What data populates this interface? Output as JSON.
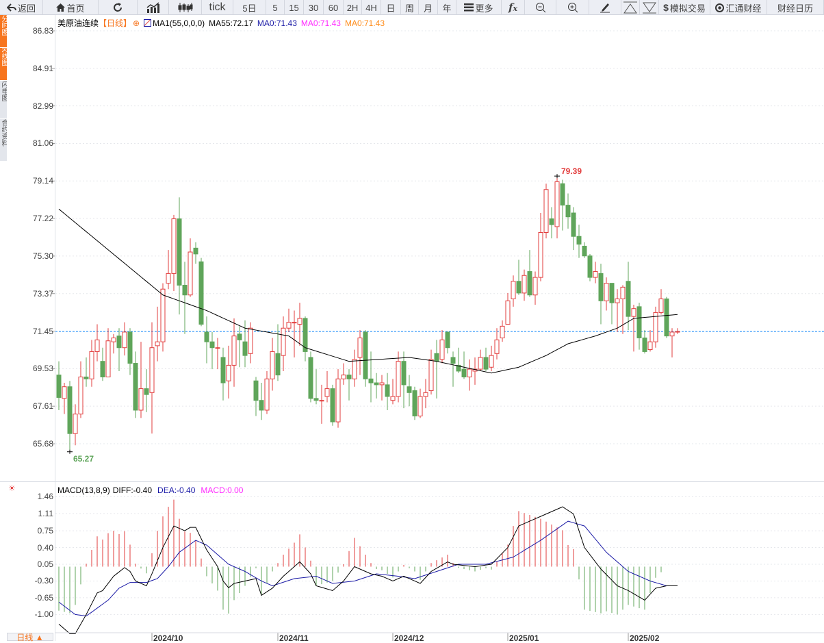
{
  "toolbar": [
    {
      "id": "back",
      "label": "返回",
      "icon": "back-arrow-icon",
      "w": 63
    },
    {
      "id": "home",
      "label": "首页",
      "icon": "home-icon",
      "w": 81
    },
    {
      "id": "refresh",
      "label": "",
      "icon": "refresh-icon",
      "w": 57
    },
    {
      "id": "indicator",
      "label": "",
      "icon": "bar-chart-icon",
      "w": 46
    },
    {
      "id": "candle",
      "label": "",
      "icon": "candlestick-icon",
      "w": 48
    },
    {
      "id": "tick",
      "label": "tick",
      "w": 46
    },
    {
      "id": "5d",
      "label": "5日",
      "w": 48
    },
    {
      "id": "m5",
      "label": "5",
      "w": 27
    },
    {
      "id": "m15",
      "label": "15",
      "w": 28
    },
    {
      "id": "m30",
      "label": "30",
      "w": 29
    },
    {
      "id": "m60",
      "label": "60",
      "w": 29
    },
    {
      "id": "h2",
      "label": "2H",
      "w": 27
    },
    {
      "id": "h4",
      "label": "4H",
      "w": 28
    },
    {
      "id": "day",
      "label": "日",
      "w": 29
    },
    {
      "id": "week",
      "label": "周",
      "w": 26
    },
    {
      "id": "month",
      "label": "月",
      "w": 28
    },
    {
      "id": "year",
      "label": "年",
      "w": 27
    },
    {
      "id": "more",
      "label": "更多",
      "icon": "menu-icon",
      "w": 66
    },
    {
      "id": "fx",
      "label": "",
      "icon": "formula-icon",
      "w": 34
    },
    {
      "id": "zoomout",
      "label": "",
      "icon": "zoom-out-icon",
      "w": 46
    },
    {
      "id": "zoomin",
      "label": "",
      "icon": "zoom-in-icon",
      "w": 48
    },
    {
      "id": "draw",
      "label": "",
      "icon": "pencil-icon",
      "w": 47
    },
    {
      "id": "up",
      "label": "",
      "icon": "triangle-up-icon",
      "w": 27
    },
    {
      "id": "down",
      "label": "",
      "icon": "triangle-down-icon",
      "w": 28
    },
    {
      "id": "sim",
      "label": "模拟交易",
      "icon": "dollar-icon",
      "w": 75
    },
    {
      "id": "fx678",
      "label": "汇通财经",
      "icon": "fx678-logo-icon",
      "w": 83
    },
    {
      "id": "cal",
      "label": "财经日历",
      "w": 83
    }
  ],
  "sidebar": [
    {
      "label": "分时图",
      "active": true
    },
    {
      "label": "K线图",
      "active": true
    },
    {
      "label": "闪电图",
      "active": false
    },
    {
      "label": "合约资料",
      "active": false
    }
  ],
  "legend": {
    "symbol": "美原油连续",
    "period": "【日线】",
    "ma_name": "MA1(55,0,0,0)",
    "ma55": "MA55:72.17",
    "ma0_a": "MA0:71.43",
    "ma0_b": "MA0:71.43",
    "ma0_c": "MA0:71.43"
  },
  "macd_legend": {
    "name": "MACD(13,8,9)",
    "diff": "DIFF:-0.40",
    "dea": "DEA:-0.40",
    "macd": "MACD:0.00"
  },
  "bottom_button": "日线 ▲",
  "colors": {
    "up": "#e23b3b",
    "down": "#5fa55a",
    "ma55": "#000000",
    "diff": "#000000",
    "dea": "#1a1aa6",
    "current_price": "#1e90ff",
    "ma0_a": "#1a1aa6",
    "ma0_b": "#ff2aff",
    "ma0_c": "#ff8c1a"
  },
  "chart_data": {
    "type": "candlestick",
    "price_axis": {
      "ticks": [
        "86.83",
        "84.91",
        "82.99",
        "81.06",
        "79.14",
        "77.22",
        "75.30",
        "73.37",
        "71.45",
        "69.53",
        "67.61",
        "65.68"
      ],
      "range": [
        65.68,
        86.83
      ]
    },
    "current_price": 71.43,
    "max_label": "79.39",
    "max_index": 91,
    "min_label": "65.27",
    "min_index": 2,
    "x_labels": [
      {
        "label": "2024/10",
        "index": 17
      },
      {
        "label": "2024/11",
        "index": 40
      },
      {
        "label": "2024/12",
        "index": 61
      },
      {
        "label": "2025/01",
        "index": 82
      },
      {
        "label": "2025/02",
        "index": 104
      }
    ],
    "ohlc": [
      [
        69.2,
        69.9,
        67.4,
        68.05
      ],
      [
        68.0,
        68.8,
        67.2,
        68.6
      ],
      [
        68.6,
        68.9,
        65.27,
        66.2
      ],
      [
        66.2,
        67.7,
        65.6,
        67.2
      ],
      [
        67.2,
        69.9,
        67.0,
        69.1
      ],
      [
        69.1,
        70.1,
        68.6,
        69.0
      ],
      [
        69.0,
        71.0,
        68.6,
        70.4
      ],
      [
        70.4,
        71.8,
        69.9,
        71.0
      ],
      [
        69.9,
        70.6,
        68.9,
        69.1
      ],
      [
        69.1,
        71.6,
        69.1,
        70.95
      ],
      [
        70.9,
        71.3,
        70.3,
        71.1
      ],
      [
        71.2,
        71.6,
        69.4,
        70.6
      ],
      [
        70.6,
        71.9,
        70.2,
        71.4
      ],
      [
        71.4,
        71.6,
        69.2,
        69.8
      ],
      [
        69.8,
        70.4,
        67.0,
        67.4
      ],
      [
        67.4,
        70.9,
        67.0,
        68.5
      ],
      [
        68.5,
        69.5,
        67.3,
        68.2
      ],
      [
        68.3,
        71.9,
        66.2,
        70.6
      ],
      [
        70.7,
        72.7,
        69.9,
        70.9
      ],
      [
        70.9,
        73.9,
        70.4,
        73.6
      ],
      [
        73.9,
        75.6,
        73.6,
        74.4
      ],
      [
        74.4,
        77.4,
        73.5,
        77.2
      ],
      [
        77.2,
        78.3,
        72.3,
        73.8
      ],
      [
        73.8,
        75.0,
        71.3,
        73.3
      ],
      [
        73.3,
        76.2,
        73.2,
        75.5
      ],
      [
        75.7,
        76.0,
        74.9,
        75.4
      ],
      [
        75.0,
        75.2,
        71.7,
        71.8
      ],
      [
        71.4,
        72.2,
        69.8,
        70.9
      ],
      [
        70.9,
        71.4,
        69.5,
        70.6
      ],
      [
        70.6,
        71.1,
        69.5,
        70.6
      ],
      [
        70.1,
        70.6,
        67.9,
        68.8
      ],
      [
        68.9,
        70.7,
        68.0,
        69.7
      ],
      [
        69.7,
        72.1,
        68.6,
        71.2
      ],
      [
        71.3,
        71.7,
        69.6,
        71.0
      ],
      [
        70.9,
        72.0,
        69.6,
        70.2
      ],
      [
        70.3,
        71.9,
        69.8,
        71.6
      ],
      [
        68.9,
        69.1,
        67.1,
        67.9
      ],
      [
        67.9,
        68.8,
        66.9,
        67.4
      ],
      [
        67.4,
        69.4,
        67.2,
        69.0
      ],
      [
        69.0,
        71.1,
        68.4,
        70.4
      ],
      [
        70.3,
        71.8,
        68.9,
        69.2
      ],
      [
        70.2,
        72.2,
        69.4,
        71.6
      ],
      [
        71.6,
        72.6,
        71.4,
        71.9
      ],
      [
        71.9,
        72.5,
        70.1,
        71.9
      ],
      [
        71.8,
        72.9,
        70.7,
        72.1
      ],
      [
        72.1,
        72.2,
        69.9,
        70.4
      ],
      [
        70.1,
        70.4,
        67.8,
        68.0
      ],
      [
        68.0,
        69.5,
        67.7,
        67.9
      ],
      [
        67.9,
        68.7,
        66.7,
        67.9
      ],
      [
        68.1,
        69.4,
        67.8,
        68.5
      ],
      [
        68.5,
        68.7,
        66.6,
        66.8
      ],
      [
        66.8,
        69.5,
        66.5,
        69.0
      ],
      [
        69.0,
        69.8,
        68.7,
        69.2
      ],
      [
        69.2,
        69.5,
        67.9,
        69.0
      ],
      [
        69.0,
        70.5,
        68.6,
        70.0
      ],
      [
        70.1,
        71.5,
        69.2,
        71.1
      ],
      [
        71.4,
        71.5,
        68.6,
        69.0
      ],
      [
        69.0,
        70.4,
        67.8,
        68.8
      ],
      [
        68.8,
        69.3,
        68.0,
        68.7
      ],
      [
        68.7,
        69.2,
        67.9,
        68.8
      ],
      [
        68.7,
        69.3,
        67.4,
        68.1
      ],
      [
        67.9,
        69.0,
        67.7,
        68.1
      ],
      [
        68.1,
        70.4,
        67.8,
        69.9
      ],
      [
        69.9,
        70.4,
        67.5,
        68.7
      ],
      [
        68.6,
        69.2,
        67.6,
        68.3
      ],
      [
        68.4,
        68.6,
        66.9,
        67.1
      ],
      [
        67.1,
        68.5,
        67.0,
        68.1
      ],
      [
        68.1,
        69.0,
        67.5,
        68.3
      ],
      [
        68.4,
        70.5,
        68.2,
        70.0
      ],
      [
        70.3,
        71.0,
        68.0,
        69.9
      ],
      [
        70.0,
        71.5,
        69.8,
        71.0
      ],
      [
        71.4,
        71.4,
        70.3,
        70.6
      ],
      [
        70.1,
        70.4,
        68.6,
        69.8
      ],
      [
        69.7,
        70.6,
        69.3,
        69.4
      ],
      [
        69.5,
        70.4,
        69.0,
        69.1
      ],
      [
        69.1,
        70.0,
        68.4,
        69.5
      ],
      [
        69.4,
        70.1,
        68.7,
        69.5
      ],
      [
        69.5,
        70.5,
        69.4,
        70.1
      ],
      [
        70.1,
        70.6,
        69.4,
        69.5
      ],
      [
        69.6,
        70.7,
        69.4,
        70.2
      ],
      [
        70.3,
        71.6,
        70.0,
        71.0
      ],
      [
        71.1,
        72.0,
        70.9,
        71.7
      ],
      [
        71.8,
        73.4,
        71.8,
        73.0
      ],
      [
        73.1,
        74.3,
        72.7,
        74.0
      ],
      [
        74.0,
        75.1,
        73.3,
        73.4
      ],
      [
        73.4,
        74.6,
        73.0,
        74.3
      ],
      [
        74.5,
        75.6,
        73.2,
        73.3
      ],
      [
        73.3,
        74.5,
        72.8,
        74.2
      ],
      [
        74.2,
        77.5,
        74.0,
        76.5
      ],
      [
        76.5,
        79.0,
        76.2,
        78.7
      ],
      [
        77.2,
        77.8,
        76.2,
        76.9
      ],
      [
        76.8,
        79.39,
        76.2,
        79.1
      ],
      [
        79.0,
        79.2,
        76.6,
        77.9
      ],
      [
        77.9,
        78.5,
        76.7,
        77.3
      ],
      [
        77.5,
        77.8,
        75.6,
        76.3
      ],
      [
        76.3,
        76.9,
        75.2,
        75.9
      ],
      [
        75.8,
        76.0,
        75.2,
        75.3
      ],
      [
        75.3,
        75.4,
        74.0,
        74.2
      ],
      [
        74.2,
        75.0,
        73.9,
        74.5
      ],
      [
        74.4,
        74.9,
        71.8,
        73.0
      ],
      [
        73.0,
        74.2,
        72.5,
        73.9
      ],
      [
        73.9,
        73.9,
        71.8,
        72.9
      ],
      [
        72.9,
        73.6,
        71.4,
        73.1
      ],
      [
        73.1,
        73.8,
        71.3,
        73.7
      ],
      [
        74.0,
        75.0,
        71.5,
        72.2
      ],
      [
        72.2,
        72.8,
        70.4,
        72.6
      ],
      [
        72.7,
        72.9,
        70.5,
        71.1
      ],
      [
        71.1,
        71.5,
        70.3,
        70.4
      ],
      [
        70.5,
        71.5,
        70.4,
        70.9
      ],
      [
        70.9,
        72.7,
        70.6,
        72.4
      ],
      [
        72.4,
        73.6,
        72.3,
        73.1
      ],
      [
        73.1,
        73.2,
        71.1,
        71.2
      ],
      [
        71.2,
        71.6,
        70.1,
        71.4
      ],
      [
        71.4,
        71.6,
        71.3,
        71.43
      ]
    ],
    "ma55_keypoints": [
      [
        0,
        77.7
      ],
      [
        19,
        73.3
      ],
      [
        27,
        72.5
      ],
      [
        34,
        71.6
      ],
      [
        42,
        71.2
      ],
      [
        45,
        70.6
      ],
      [
        53,
        69.9
      ],
      [
        64,
        70.1
      ],
      [
        69,
        69.9
      ],
      [
        79,
        69.3
      ],
      [
        84,
        69.6
      ],
      [
        89,
        70.2
      ],
      [
        93,
        70.8
      ],
      [
        98,
        71.2
      ],
      [
        102,
        71.6
      ],
      [
        105,
        72.1
      ],
      [
        113,
        72.3
      ]
    ],
    "macd": {
      "axis_ticks": [
        "1.46",
        "1.11",
        "0.75",
        "0.40",
        "0.05",
        "-0.30",
        "-0.65",
        "-1.00"
      ],
      "range": [
        -1.3,
        1.5
      ],
      "diff_keypoints": [
        [
          0,
          -1.2
        ],
        [
          2,
          -1.4
        ],
        [
          3,
          -1.4
        ],
        [
          5,
          -1.0
        ],
        [
          7,
          -0.55
        ],
        [
          8,
          -0.5
        ],
        [
          10,
          -0.2
        ],
        [
          12,
          -0.02
        ],
        [
          13,
          -0.1
        ],
        [
          14,
          -0.3
        ],
        [
          16,
          -0.4
        ],
        [
          17,
          -0.15
        ],
        [
          19,
          0.4
        ],
        [
          21,
          0.85
        ],
        [
          23,
          0.75
        ],
        [
          24,
          0.82
        ],
        [
          25,
          0.82
        ],
        [
          27,
          0.35
        ],
        [
          29,
          0.0
        ],
        [
          30,
          -0.3
        ],
        [
          31,
          -0.44
        ],
        [
          32,
          -0.35
        ],
        [
          34,
          -0.3
        ],
        [
          36,
          -0.25
        ],
        [
          37,
          -0.6
        ],
        [
          39,
          -0.45
        ],
        [
          41,
          -0.2
        ],
        [
          44,
          0.1
        ],
        [
          46,
          -0.15
        ],
        [
          47,
          -0.4
        ],
        [
          50,
          -0.5
        ],
        [
          52,
          -0.3
        ],
        [
          54,
          0.0
        ],
        [
          57,
          -0.15
        ],
        [
          59,
          -0.2
        ],
        [
          61,
          -0.3
        ],
        [
          63,
          -0.2
        ],
        [
          66,
          -0.35
        ],
        [
          68,
          -0.1
        ],
        [
          71,
          0.1
        ],
        [
          72,
          0.05
        ],
        [
          76,
          0.0
        ],
        [
          79,
          0.05
        ],
        [
          82,
          0.4
        ],
        [
          84,
          0.85
        ],
        [
          88,
          1.05
        ],
        [
          90,
          1.15
        ],
        [
          92,
          1.25
        ],
        [
          94,
          1.1
        ],
        [
          96,
          0.4
        ],
        [
          99,
          -0.05
        ],
        [
          102,
          -0.4
        ],
        [
          104,
          -0.5
        ],
        [
          107,
          -0.7
        ],
        [
          109,
          -0.45
        ],
        [
          111,
          -0.4
        ],
        [
          113,
          -0.4
        ]
      ],
      "dea_keypoints": [
        [
          0,
          -0.74
        ],
        [
          3,
          -1.0
        ],
        [
          5,
          -1.03
        ],
        [
          6,
          -0.95
        ],
        [
          9,
          -0.7
        ],
        [
          11,
          -0.45
        ],
        [
          13,
          -0.33
        ],
        [
          16,
          -0.33
        ],
        [
          18,
          -0.25
        ],
        [
          20,
          0.0
        ],
        [
          22,
          0.3
        ],
        [
          25,
          0.55
        ],
        [
          27,
          0.45
        ],
        [
          29,
          0.25
        ],
        [
          31,
          0.05
        ],
        [
          34,
          -0.1
        ],
        [
          37,
          -0.3
        ],
        [
          39,
          -0.4
        ],
        [
          43,
          -0.25
        ],
        [
          47,
          -0.2
        ],
        [
          50,
          -0.35
        ],
        [
          54,
          -0.3
        ],
        [
          58,
          -0.15
        ],
        [
          62,
          -0.2
        ],
        [
          65,
          -0.25
        ],
        [
          69,
          -0.1
        ],
        [
          73,
          0.05
        ],
        [
          78,
          0.05
        ],
        [
          83,
          0.2
        ],
        [
          88,
          0.55
        ],
        [
          93,
          0.95
        ],
        [
          96,
          0.85
        ],
        [
          100,
          0.3
        ],
        [
          104,
          -0.1
        ],
        [
          108,
          -0.3
        ],
        [
          111,
          -0.4
        ],
        [
          113,
          -0.4
        ]
      ]
    }
  }
}
